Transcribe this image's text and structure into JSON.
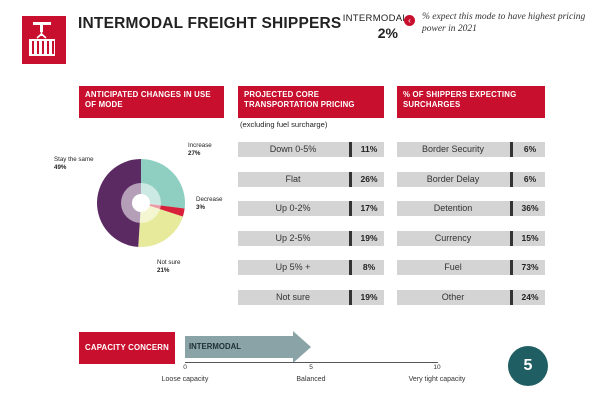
{
  "header": {
    "title": "INTERMODAL FREIGHT SHIPPERS",
    "mode_label": "INTERMODAL",
    "mode_pct": "2%",
    "note": "% expect this mode to have highest pricing power in 2021",
    "icon": "crane-container-icon",
    "badge_icon": "chevron-left-icon",
    "accent_color": "#c8102e"
  },
  "sections": {
    "changes": "ANTICIPATED CHANGES IN USE OF MODE",
    "pricing": "PROJECTED CORE TRANSPORTATION PRICING",
    "pricing_note": "(excluding fuel surcharge)",
    "surcharges": "% OF SHIPPERS EXPECTING SURCHARGES"
  },
  "chart_data": [
    {
      "type": "pie",
      "title": "ANTICIPATED CHANGES IN USE OF MODE",
      "slices": [
        {
          "name": "Increase",
          "value": 27,
          "label": "27%",
          "color": "#8fcfc2"
        },
        {
          "name": "Decrease",
          "value": 3,
          "label": "3%",
          "color": "#d8203a"
        },
        {
          "name": "Not sure",
          "value": 21,
          "label": "21%",
          "color": "#e6ea9a"
        },
        {
          "name": "Stay the same",
          "value": 49,
          "label": "49%",
          "color": "#5c2a63"
        }
      ]
    },
    {
      "type": "bar",
      "title": "PROJECTED CORE TRANSPORTATION PRICING",
      "categories": [
        "Down 0-5%",
        "Flat",
        "Up 0-2%",
        "Up 2-5%",
        "Up 5% +",
        "Not sure"
      ],
      "values": [
        11,
        26,
        17,
        19,
        8,
        19
      ],
      "labels": [
        "11%",
        "26%",
        "17%",
        "19%",
        "8%",
        "19%"
      ]
    },
    {
      "type": "bar",
      "title": "% OF SHIPPERS EXPECTING SURCHARGES",
      "categories": [
        "Border Security",
        "Border Delay",
        "Detention",
        "Currency",
        "Fuel",
        "Other"
      ],
      "values": [
        6,
        6,
        36,
        15,
        73,
        24
      ],
      "labels": [
        "6%",
        "6%",
        "36%",
        "15%",
        "73%",
        "24%"
      ]
    },
    {
      "type": "bar",
      "title": "CAPACITY CONCERN",
      "series": [
        {
          "name": "INTERMODAL",
          "values": [
            5
          ]
        }
      ],
      "xlim": [
        0,
        10
      ],
      "ticks": [
        "0",
        "5",
        "10"
      ],
      "axis_labels": [
        "Loose capacity",
        "Balanced",
        "Very tight capacity"
      ],
      "color": "#8aa3a7"
    }
  ],
  "page_number": "5",
  "page_color": "#1f5f63"
}
